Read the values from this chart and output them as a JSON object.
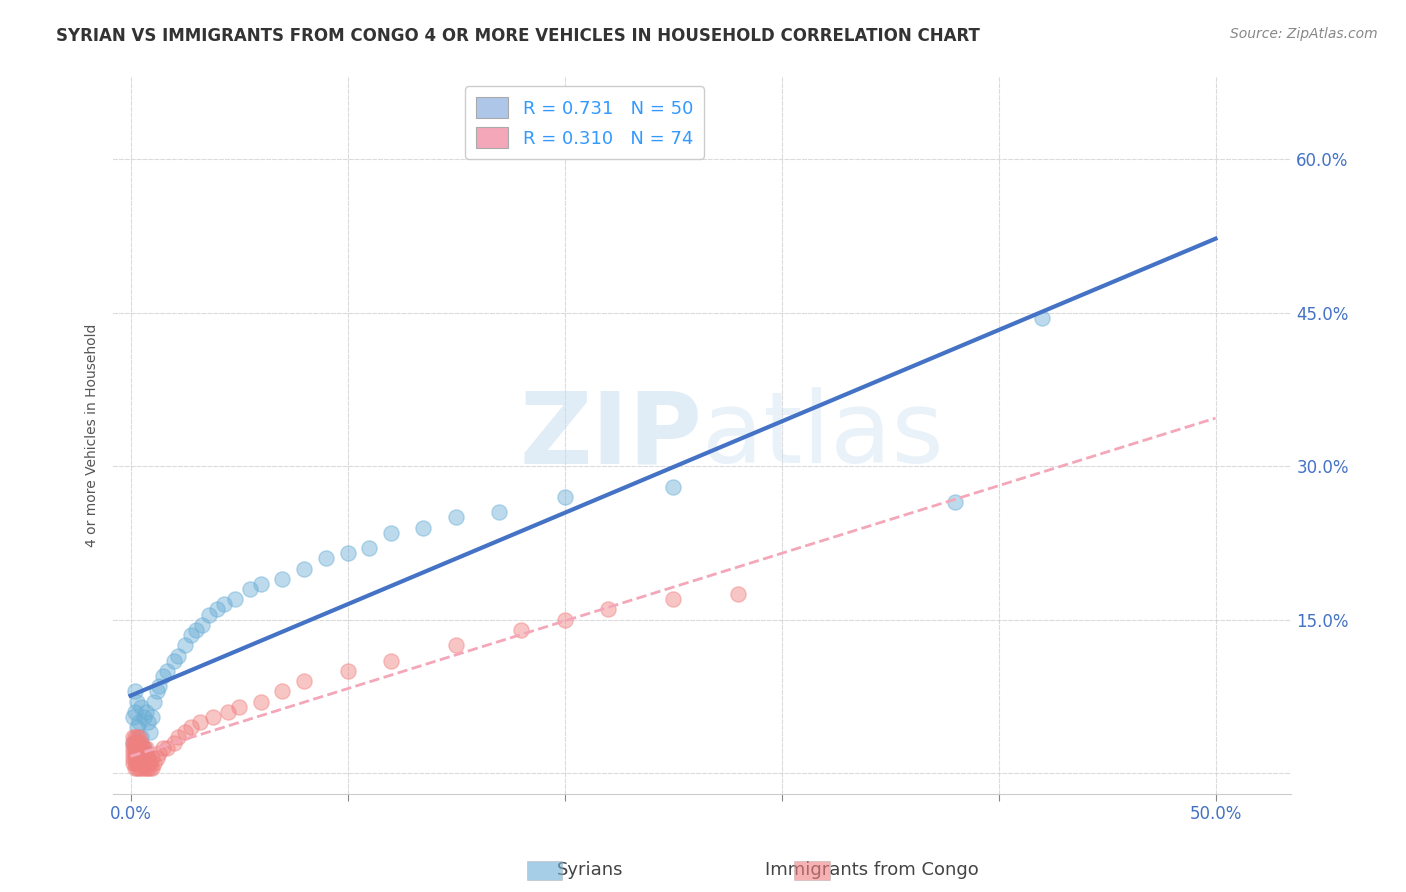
{
  "title": "SYRIAN VS IMMIGRANTS FROM CONGO 4 OR MORE VEHICLES IN HOUSEHOLD CORRELATION CHART",
  "source": "Source: ZipAtlas.com",
  "ylabel": "4 or more Vehicles in Household",
  "x_ticks": [
    0.0,
    0.1,
    0.2,
    0.3,
    0.4,
    0.5
  ],
  "x_tick_labels": [
    "0.0%",
    "",
    "",
    "",
    "",
    "50.0%"
  ],
  "y_ticks": [
    0.0,
    0.15,
    0.3,
    0.45,
    0.6
  ],
  "y_tick_labels_right": [
    "",
    "15.0%",
    "30.0%",
    "45.0%",
    "60.0%"
  ],
  "xlim": [
    -0.008,
    0.535
  ],
  "ylim": [
    -0.02,
    0.68
  ],
  "watermark_zip": "ZIP",
  "watermark_atlas": "atlas",
  "legend_entries": [
    {
      "label_r": "R = 0.731",
      "label_n": "N = 50",
      "color": "#aec6e8"
    },
    {
      "label_r": "R = 0.310",
      "label_n": "N = 74",
      "color": "#f4a7b9"
    }
  ],
  "legend_labels": [
    "Syrians",
    "Immigrants from Congo"
  ],
  "syrians_color": "#6baed6",
  "congo_color": "#f08080",
  "trendline_syrian_color": "#4472c4",
  "trendline_congo_color": "#f4a7b9",
  "background_color": "#ffffff",
  "plot_bg_color": "#ffffff",
  "grid_color": "#cccccc",
  "title_fontsize": 12,
  "axis_label_fontsize": 10,
  "tick_fontsize": 12,
  "source_fontsize": 10,
  "legend_fontsize": 13,
  "marker_size": 120,
  "marker_alpha": 0.45,
  "R_syrian": 0.731,
  "N_syrian": 50,
  "R_congo": 0.31,
  "N_congo": 74,
  "syrians_x": [
    0.001,
    0.001,
    0.002,
    0.002,
    0.002,
    0.003,
    0.003,
    0.003,
    0.004,
    0.004,
    0.005,
    0.005,
    0.006,
    0.006,
    0.007,
    0.007,
    0.008,
    0.008,
    0.009,
    0.01,
    0.011,
    0.012,
    0.013,
    0.015,
    0.017,
    0.02,
    0.022,
    0.025,
    0.028,
    0.03,
    0.033,
    0.036,
    0.04,
    0.043,
    0.048,
    0.055,
    0.06,
    0.07,
    0.08,
    0.09,
    0.1,
    0.11,
    0.12,
    0.135,
    0.15,
    0.17,
    0.2,
    0.25,
    0.38,
    0.42
  ],
  "syrians_y": [
    0.03,
    0.055,
    0.025,
    0.06,
    0.08,
    0.02,
    0.045,
    0.07,
    0.015,
    0.05,
    0.035,
    0.065,
    0.025,
    0.055,
    0.02,
    0.06,
    0.015,
    0.05,
    0.04,
    0.055,
    0.07,
    0.08,
    0.085,
    0.095,
    0.1,
    0.11,
    0.115,
    0.125,
    0.135,
    0.14,
    0.145,
    0.155,
    0.16,
    0.165,
    0.17,
    0.18,
    0.185,
    0.19,
    0.2,
    0.21,
    0.215,
    0.22,
    0.235,
    0.24,
    0.25,
    0.255,
    0.27,
    0.28,
    0.265,
    0.445
  ],
  "congo_x": [
    0.001,
    0.001,
    0.001,
    0.001,
    0.001,
    0.001,
    0.002,
    0.002,
    0.002,
    0.002,
    0.002,
    0.002,
    0.002,
    0.003,
    0.003,
    0.003,
    0.003,
    0.003,
    0.003,
    0.003,
    0.004,
    0.004,
    0.004,
    0.004,
    0.004,
    0.004,
    0.004,
    0.005,
    0.005,
    0.005,
    0.005,
    0.005,
    0.005,
    0.006,
    0.006,
    0.006,
    0.006,
    0.006,
    0.007,
    0.007,
    0.007,
    0.007,
    0.007,
    0.008,
    0.008,
    0.008,
    0.009,
    0.009,
    0.01,
    0.01,
    0.011,
    0.012,
    0.013,
    0.015,
    0.017,
    0.02,
    0.022,
    0.025,
    0.028,
    0.032,
    0.038,
    0.045,
    0.05,
    0.06,
    0.07,
    0.08,
    0.1,
    0.12,
    0.15,
    0.18,
    0.2,
    0.22,
    0.25,
    0.28
  ],
  "congo_y": [
    0.01,
    0.015,
    0.02,
    0.025,
    0.03,
    0.035,
    0.005,
    0.01,
    0.015,
    0.02,
    0.025,
    0.03,
    0.035,
    0.005,
    0.01,
    0.015,
    0.02,
    0.025,
    0.03,
    0.035,
    0.005,
    0.01,
    0.015,
    0.02,
    0.025,
    0.03,
    0.035,
    0.005,
    0.01,
    0.015,
    0.02,
    0.025,
    0.03,
    0.005,
    0.01,
    0.015,
    0.02,
    0.025,
    0.005,
    0.01,
    0.015,
    0.02,
    0.025,
    0.005,
    0.01,
    0.015,
    0.005,
    0.01,
    0.005,
    0.015,
    0.01,
    0.015,
    0.02,
    0.025,
    0.025,
    0.03,
    0.035,
    0.04,
    0.045,
    0.05,
    0.055,
    0.06,
    0.065,
    0.07,
    0.08,
    0.09,
    0.1,
    0.11,
    0.125,
    0.14,
    0.15,
    0.16,
    0.17,
    0.175
  ]
}
